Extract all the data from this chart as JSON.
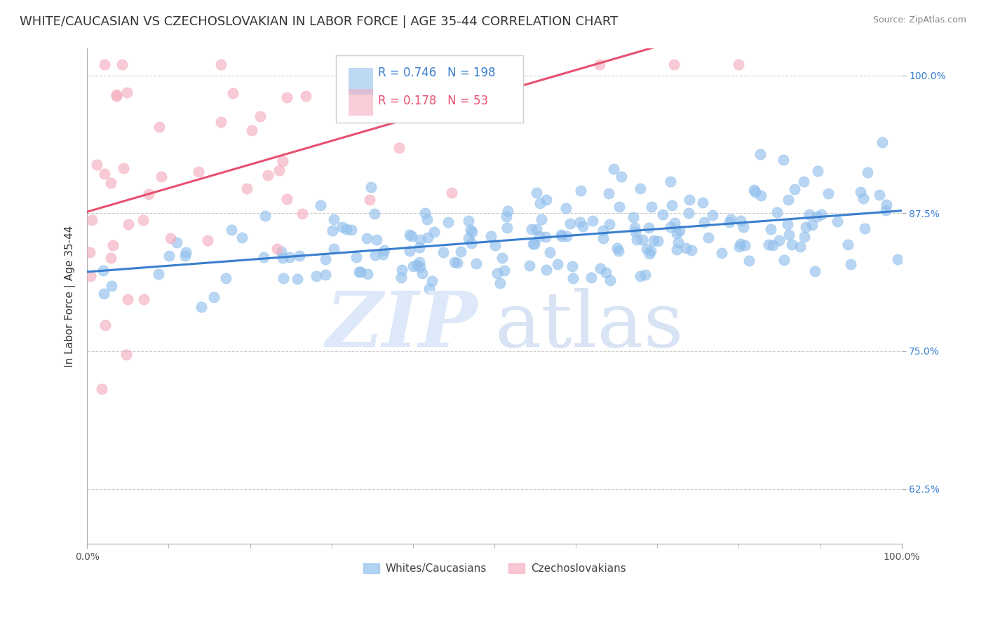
{
  "title": "WHITE/CAUCASIAN VS CZECHOSLOVAKIAN IN LABOR FORCE | AGE 35-44 CORRELATION CHART",
  "source": "Source: ZipAtlas.com",
  "ylabel": "In Labor Force | Age 35-44",
  "xlim": [
    0.0,
    1.0
  ],
  "ylim": [
    0.575,
    1.025
  ],
  "yticks": [
    0.625,
    0.75,
    0.875,
    1.0
  ],
  "ytick_labels": [
    "62.5%",
    "75.0%",
    "87.5%",
    "100.0%"
  ],
  "xticks": [
    0.0,
    1.0
  ],
  "xtick_labels": [
    "0.0%",
    "100.0%"
  ],
  "blue_R": 0.746,
  "blue_N": 198,
  "pink_R": 0.178,
  "pink_N": 53,
  "blue_color": "#92c0ed",
  "pink_color": "#f5aec0",
  "blue_line_color": "#3a7ecf",
  "pink_line_color": "#e8506e",
  "grid_color": "#cccccc",
  "background_color": "#ffffff",
  "title_fontsize": 13,
  "axis_label_fontsize": 11,
  "tick_fontsize": 10,
  "legend_fontsize": 12,
  "blue_seed": 42,
  "pink_seed": 17
}
